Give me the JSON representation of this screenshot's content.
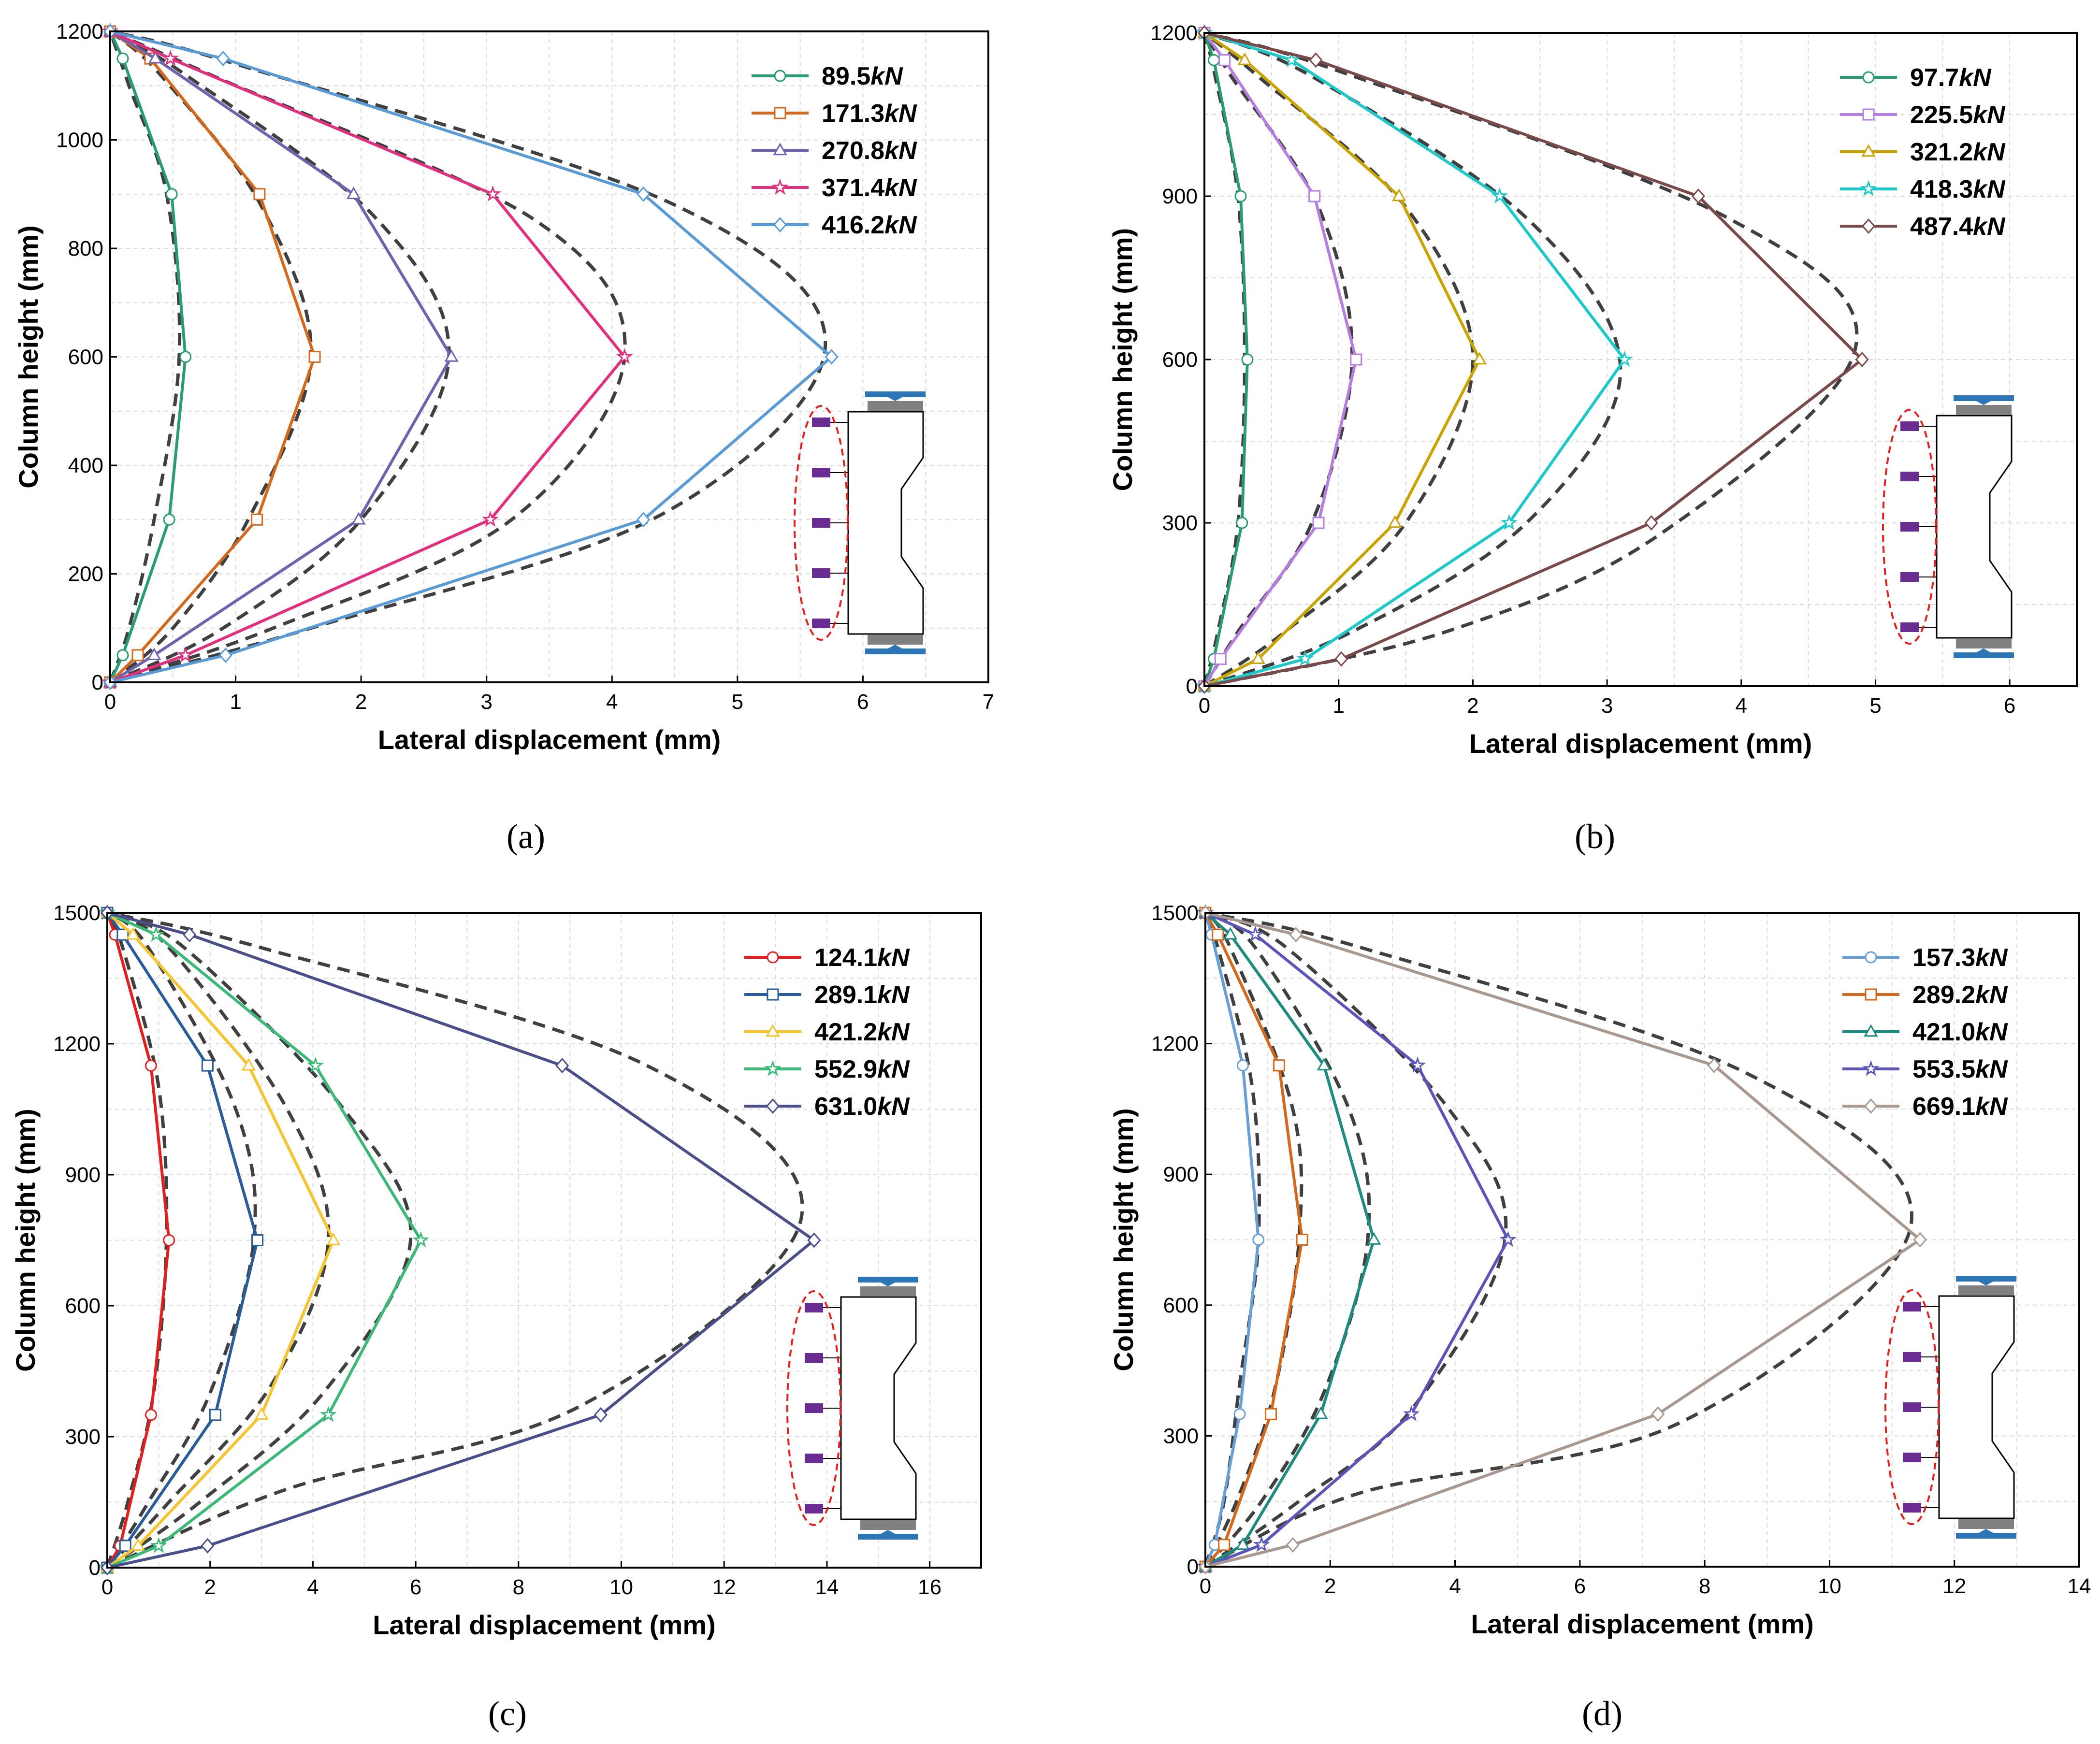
{
  "figure": {
    "panels": [
      {
        "id": "a",
        "caption_letter": "a"
      },
      {
        "id": "b",
        "caption_letter": "b"
      },
      {
        "id": "c",
        "caption_letter": "c"
      },
      {
        "id": "d",
        "caption_letter": "d"
      }
    ]
  },
  "chart_data": [
    {
      "type": "line",
      "panel": "a",
      "xlabel": "Lateral displacement (mm)",
      "ylabel": "Column height (mm)",
      "xlim": [
        0,
        7
      ],
      "ylim": [
        0,
        1200
      ],
      "xticks": [
        0,
        1,
        2,
        3,
        4,
        5,
        6,
        7
      ],
      "yticks": [
        0,
        200,
        400,
        600,
        800,
        1000,
        1200
      ],
      "grid": true,
      "legend_position": "top-right",
      "y": [
        0,
        50,
        300,
        600,
        900,
        1150,
        1200
      ],
      "series": [
        {
          "name": "89.5",
          "unit": "kN",
          "color": "#2a9d6e",
          "marker": "circle",
          "x": [
            0,
            0.1,
            0.47,
            0.6,
            0.49,
            0.1,
            0
          ],
          "dashed": [
            [
              0,
              0
            ],
            [
              0.15,
              100
            ],
            [
              0.35,
              300
            ],
            [
              0.55,
              600
            ],
            [
              0.45,
              900
            ],
            [
              0.15,
              1100
            ],
            [
              0,
              1200
            ]
          ]
        },
        {
          "name": "171.3",
          "unit": "kN",
          "color": "#d2691e",
          "marker": "square",
          "x": [
            0,
            0.22,
            1.17,
            1.63,
            1.19,
            0.32,
            0
          ],
          "dashed": [
            [
              0,
              0
            ],
            [
              0.5,
              100
            ],
            [
              1.1,
              300
            ],
            [
              1.6,
              600
            ],
            [
              1.2,
              880
            ],
            [
              0.4,
              1120
            ],
            [
              0,
              1200
            ]
          ]
        },
        {
          "name": "270.8",
          "unit": "kN",
          "color": "#7063ae",
          "marker": "triangle",
          "x": [
            0,
            0.35,
            1.98,
            2.72,
            1.94,
            0.36,
            0
          ],
          "dashed": [
            [
              0,
              0
            ],
            [
              0.9,
              100
            ],
            [
              2.0,
              300
            ],
            [
              2.7,
              600
            ],
            [
              2.1,
              860
            ],
            [
              0.6,
              1120
            ],
            [
              0,
              1200
            ]
          ]
        },
        {
          "name": "371.4",
          "unit": "kN",
          "color": "#e0307e",
          "marker": "star",
          "x": [
            0,
            0.6,
            3.03,
            4.1,
            3.05,
            0.48,
            0
          ],
          "dashed": [
            [
              0,
              0
            ],
            [
              1.3,
              100
            ],
            [
              3.2,
              300
            ],
            [
              4.1,
              600
            ],
            [
              3.4,
              850
            ],
            [
              0.8,
              1120
            ],
            [
              0,
              1200
            ]
          ]
        },
        {
          "name": "416.2",
          "unit": "kN",
          "color": "#5b9bd5",
          "marker": "diamond",
          "x": [
            0,
            0.92,
            4.25,
            5.75,
            4.25,
            0.9,
            0
          ],
          "dashed": [
            [
              0,
              0
            ],
            [
              1.6,
              100
            ],
            [
              4.4,
              310
            ],
            [
              5.7,
              620
            ],
            [
              4.5,
              880
            ],
            [
              1.0,
              1140
            ],
            [
              0,
              1200
            ]
          ]
        }
      ]
    },
    {
      "type": "line",
      "panel": "b",
      "xlabel": "Lateral displacement (mm)",
      "ylabel": "Column height (mm)",
      "xlim": [
        0,
        6.5
      ],
      "ylim": [
        0,
        1200
      ],
      "xticks": [
        0,
        1,
        2,
        3,
        4,
        5,
        6
      ],
      "yticks": [
        0,
        300,
        600,
        900,
        1200
      ],
      "grid": true,
      "legend_position": "top-right",
      "y": [
        0,
        50,
        300,
        600,
        900,
        1150,
        1200
      ],
      "series": [
        {
          "name": "97.7",
          "unit": "kN",
          "color": "#2a9d6e",
          "marker": "circle",
          "x": [
            0,
            0.07,
            0.28,
            0.32,
            0.27,
            0.07,
            0
          ],
          "dashed": [
            [
              0,
              0
            ],
            [
              0.1,
              100
            ],
            [
              0.25,
              300
            ],
            [
              0.3,
              600
            ],
            [
              0.25,
              900
            ],
            [
              0.08,
              1120
            ],
            [
              0,
              1200
            ]
          ]
        },
        {
          "name": "225.5",
          "unit": "kN",
          "color": "#b57fe0",
          "marker": "square",
          "x": [
            0,
            0.12,
            0.85,
            1.13,
            0.82,
            0.15,
            0
          ],
          "dashed": [
            [
              0,
              0
            ],
            [
              0.25,
              100
            ],
            [
              0.8,
              300
            ],
            [
              1.1,
              600
            ],
            [
              0.85,
              880
            ],
            [
              0.2,
              1120
            ],
            [
              0,
              1200
            ]
          ]
        },
        {
          "name": "321.2",
          "unit": "kN",
          "color": "#c9a400",
          "marker": "triangle",
          "x": [
            0,
            0.4,
            1.42,
            2.05,
            1.45,
            0.3,
            0
          ],
          "dashed": [
            [
              0,
              0
            ],
            [
              0.6,
              100
            ],
            [
              1.5,
              300
            ],
            [
              2.0,
              600
            ],
            [
              1.5,
              880
            ],
            [
              0.4,
              1120
            ],
            [
              0,
              1200
            ]
          ]
        },
        {
          "name": "418.3",
          "unit": "kN",
          "color": "#1fc8c8",
          "marker": "star",
          "x": [
            0,
            0.75,
            2.27,
            3.13,
            2.2,
            0.65,
            0
          ],
          "dashed": [
            [
              0,
              0
            ],
            [
              1.1,
              100
            ],
            [
              2.4,
              300
            ],
            [
              3.1,
              580
            ],
            [
              2.4,
              860
            ],
            [
              0.8,
              1120
            ],
            [
              0,
              1200
            ]
          ]
        },
        {
          "name": "487.4",
          "unit": "kN",
          "color": "#7a4a4a",
          "marker": "diamond",
          "x": [
            0,
            1.02,
            3.33,
            4.9,
            3.68,
            0.83,
            0
          ],
          "dashed": [
            [
              0,
              0
            ],
            [
              1.8,
              100
            ],
            [
              3.4,
              280
            ],
            [
              4.85,
              620
            ],
            [
              3.9,
              860
            ],
            [
              1.0,
              1130
            ],
            [
              0,
              1200
            ]
          ]
        }
      ]
    },
    {
      "type": "line",
      "panel": "c",
      "xlabel": "Lateral displacement (mm)",
      "ylabel": "Column height (mm)",
      "xlim": [
        0,
        17
      ],
      "ylim": [
        0,
        1500
      ],
      "xticks": [
        0,
        2,
        4,
        6,
        8,
        10,
        12,
        14,
        16
      ],
      "yticks": [
        0,
        300,
        600,
        900,
        1200,
        1500
      ],
      "grid": true,
      "legend_position": "top-right",
      "y": [
        0,
        50,
        350,
        750,
        1150,
        1450,
        1500
      ],
      "series": [
        {
          "name": "124.1",
          "unit": "kN",
          "color": "#e02020",
          "marker": "circle",
          "x": [
            0,
            0.25,
            0.85,
            1.2,
            0.85,
            0.15,
            0
          ],
          "dashed": [
            [
              0,
              0
            ],
            [
              0.4,
              150
            ],
            [
              0.9,
              400
            ],
            [
              1.15,
              750
            ],
            [
              1.0,
              1100
            ],
            [
              0.3,
              1420
            ],
            [
              0,
              1500
            ]
          ]
        },
        {
          "name": "289.1",
          "unit": "kN",
          "color": "#2a5c9a",
          "marker": "square",
          "x": [
            0,
            0.35,
            2.1,
            2.92,
            1.95,
            0.3,
            0
          ],
          "dashed": [
            [
              0,
              0
            ],
            [
              0.8,
              150
            ],
            [
              2.0,
              400
            ],
            [
              2.85,
              750
            ],
            [
              2.5,
              1050
            ],
            [
              0.8,
              1420
            ],
            [
              0,
              1500
            ]
          ]
        },
        {
          "name": "421.2",
          "unit": "kN",
          "color": "#f5c431",
          "marker": "triangle",
          "x": [
            0,
            0.6,
            3.0,
            4.4,
            2.75,
            0.5,
            0
          ],
          "dashed": [
            [
              0,
              0
            ],
            [
              1.2,
              150
            ],
            [
              3.2,
              420
            ],
            [
              4.3,
              750
            ],
            [
              3.5,
              1050
            ],
            [
              1.2,
              1420
            ],
            [
              0,
              1500
            ]
          ]
        },
        {
          "name": "552.9",
          "unit": "kN",
          "color": "#3cb878",
          "marker": "star",
          "x": [
            0,
            1.0,
            4.3,
            6.1,
            4.05,
            0.95,
            0
          ],
          "dashed": [
            [
              0,
              0
            ],
            [
              1.8,
              150
            ],
            [
              4.2,
              400
            ],
            [
              5.9,
              750
            ],
            [
              4.6,
              1050
            ],
            [
              1.5,
              1420
            ],
            [
              0,
              1500
            ]
          ]
        },
        {
          "name": "631.0",
          "unit": "kN",
          "color": "#4a4f8a",
          "marker": "diamond",
          "x": [
            0,
            1.95,
            9.6,
            13.75,
            8.85,
            1.6,
            0
          ],
          "dashed": [
            [
              0,
              0
            ],
            [
              3.5,
              180
            ],
            [
              9.2,
              370
            ],
            [
              13.5,
              800
            ],
            [
              10.5,
              1150
            ],
            [
              3.0,
              1420
            ],
            [
              0,
              1500
            ]
          ]
        }
      ]
    },
    {
      "type": "line",
      "panel": "d",
      "xlabel": "Lateral displacement (mm)",
      "ylabel": "Column height (mm)",
      "xlim": [
        0,
        14
      ],
      "ylim": [
        0,
        1500
      ],
      "xticks": [
        0,
        2,
        4,
        6,
        8,
        10,
        12,
        14
      ],
      "yticks": [
        0,
        300,
        600,
        900,
        1200,
        1500
      ],
      "grid": true,
      "legend_position": "top-right",
      "y": [
        0,
        50,
        350,
        750,
        1150,
        1450,
        1500
      ],
      "series": [
        {
          "name": "157.3",
          "unit": "kN",
          "color": "#6a9fd4",
          "marker": "circle",
          "x": [
            0,
            0.15,
            0.55,
            0.85,
            0.6,
            0.1,
            0
          ],
          "dashed": [
            [
              0,
              0
            ],
            [
              0.3,
              150
            ],
            [
              0.55,
              420
            ],
            [
              0.85,
              750
            ],
            [
              0.75,
              1100
            ],
            [
              0.2,
              1420
            ],
            [
              0,
              1500
            ]
          ]
        },
        {
          "name": "289.2",
          "unit": "kN",
          "color": "#d2691e",
          "marker": "square",
          "x": [
            0,
            0.3,
            1.05,
            1.55,
            1.18,
            0.2,
            0
          ],
          "dashed": [
            [
              0,
              0
            ],
            [
              0.5,
              150
            ],
            [
              1.1,
              400
            ],
            [
              1.5,
              750
            ],
            [
              1.4,
              1050
            ],
            [
              0.4,
              1420
            ],
            [
              0,
              1500
            ]
          ]
        },
        {
          "name": "421.0",
          "unit": "kN",
          "color": "#1f8a80",
          "marker": "triangle",
          "x": [
            0,
            0.6,
            1.85,
            2.7,
            1.9,
            0.4,
            0
          ],
          "dashed": [
            [
              0,
              0
            ],
            [
              0.9,
              150
            ],
            [
              1.9,
              400
            ],
            [
              2.6,
              750
            ],
            [
              2.3,
              1050
            ],
            [
              0.8,
              1420
            ],
            [
              0,
              1500
            ]
          ]
        },
        {
          "name": "553.5",
          "unit": "kN",
          "color": "#5b55b8",
          "marker": "star",
          "x": [
            0,
            0.9,
            3.3,
            4.85,
            3.4,
            0.8,
            0
          ],
          "dashed": [
            [
              0,
              0
            ],
            [
              1.5,
              150
            ],
            [
              3.3,
              360
            ],
            [
              4.8,
              750
            ],
            [
              3.9,
              1050
            ],
            [
              1.3,
              1420
            ],
            [
              0,
              1500
            ]
          ]
        },
        {
          "name": "669.1",
          "unit": "kN",
          "color": "#a89890",
          "marker": "diamond",
          "x": [
            0,
            1.4,
            7.25,
            11.45,
            8.15,
            1.45,
            0
          ],
          "dashed": [
            [
              0,
              0
            ],
            [
              2.5,
              170
            ],
            [
              7.6,
              330
            ],
            [
              11.3,
              780
            ],
            [
              8.7,
              1130
            ],
            [
              2.5,
              1420
            ],
            [
              0,
              1500
            ]
          ]
        }
      ]
    }
  ]
}
